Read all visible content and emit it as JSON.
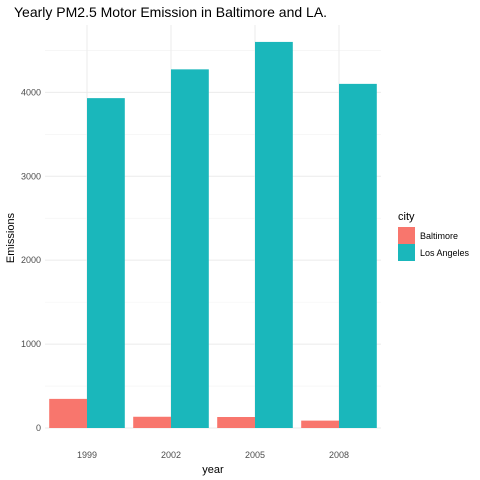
{
  "chart_data": {
    "type": "bar",
    "title": "Yearly PM2.5 Motor Emission in Baltimore and LA.",
    "xlabel": "year",
    "ylabel": "Emissions",
    "categories": [
      "1999",
      "2002",
      "2005",
      "2008"
    ],
    "series": [
      {
        "name": "Baltimore",
        "color": "#F8766D",
        "values": [
          347,
          134,
          131,
          88
        ]
      },
      {
        "name": "Los Angeles",
        "color": "#1AB7BB",
        "values": [
          3931,
          4274,
          4601,
          4101
        ]
      }
    ],
    "ylim": [
      0,
      4600
    ],
    "yticks": [
      "0",
      "1000",
      "2000",
      "3000",
      "4000"
    ],
    "grid": true,
    "legend": {
      "title": "city",
      "position": "right"
    }
  }
}
